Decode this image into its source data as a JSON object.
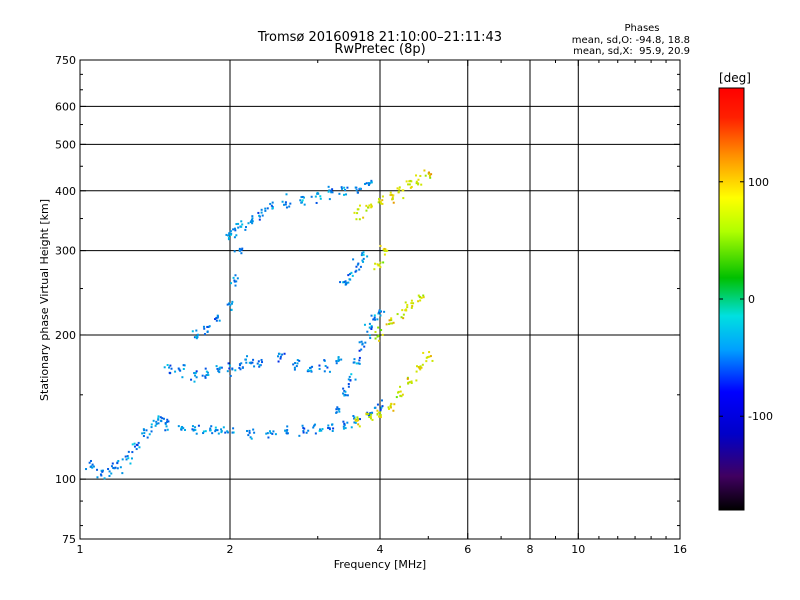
{
  "chart_data": {
    "type": "scatter",
    "title": "Tromsø 20160918 21:10:00–21:11:43",
    "subtitle": "RwPretec (8p)",
    "xlabel": "Frequency [MHz]",
    "ylabel": "Stationary phase Virtual Height [km]",
    "x_scale": "log",
    "y_scale": "log",
    "xlim": [
      1,
      16
    ],
    "ylim": [
      75,
      750
    ],
    "x_ticks": [
      1,
      2,
      4,
      6,
      8,
      10,
      16
    ],
    "x_tick_labels": [
      "1",
      "2",
      "4",
      "6",
      "8",
      "10",
      "16"
    ],
    "y_ticks": [
      75,
      100,
      200,
      300,
      400,
      500,
      600,
      750
    ],
    "y_tick_labels": [
      "75",
      "100",
      "200",
      "300",
      "400",
      "500",
      "600",
      "750"
    ],
    "grid": true,
    "colorbar": {
      "label": "[deg]",
      "range": [
        -180,
        180
      ],
      "ticks": [
        100,
        0,
        -100
      ],
      "tick_labels": [
        "100",
        "0",
        "-100"
      ]
    },
    "stats": {
      "title": "Phases",
      "line_o": "mean, sd,O: -94.8, 18.8",
      "line_x": "mean, sd,X:  95.9, 20.9"
    },
    "series": [
      {
        "mode": "O",
        "phase_mean_deg": -94.8,
        "phase_sd_deg": 18.8,
        "traces": [
          {
            "x": [
              1.05,
              1.1,
              1.15,
              1.2,
              1.25,
              1.3,
              1.35,
              1.4,
              1.45
            ],
            "y": [
              106,
              104,
              105,
              107,
              112,
              118,
              125,
              130,
              133
            ]
          },
          {
            "x": [
              1.5,
              1.6,
              1.7,
              1.8,
              1.9,
              2.0,
              2.2,
              2.4,
              2.6,
              2.8,
              3.0,
              3.2,
              3.4,
              3.6,
              3.8,
              4.0
            ],
            "y": [
              130,
              128,
              127,
              126,
              126,
              125,
              125,
              125,
              125,
              126,
              127,
              128,
              130,
              133,
              137,
              142
            ]
          },
          {
            "x": [
              1.5,
              1.6,
              1.7,
              1.8,
              1.9,
              2.0,
              2.1,
              2.2
            ],
            "y": [
              170,
              168,
              165,
              165,
              168,
              170,
              173,
              176
            ]
          },
          {
            "x": [
              1.7,
              1.8,
              1.9,
              2.0,
              2.05,
              2.1
            ],
            "y": [
              200,
              205,
              215,
              230,
              260,
              300
            ]
          },
          {
            "x": [
              2.0,
              2.05,
              2.1,
              2.2,
              2.3,
              2.4,
              2.6,
              2.8,
              3.0,
              3.2,
              3.4,
              3.6,
              3.8
            ],
            "y": [
              320,
              330,
              340,
              350,
              360,
              370,
              380,
              385,
              390,
              395,
              400,
              405,
              410
            ]
          },
          {
            "x": [
              2.3,
              2.5,
              2.7,
              2.9,
              3.1,
              3.3
            ],
            "y": [
              175,
              178,
              174,
              170,
              172,
              176
            ]
          },
          {
            "x": [
              3.3,
              3.4,
              3.5,
              3.6,
              3.7,
              3.8,
              3.9,
              4.0
            ],
            "y": [
              140,
              150,
              160,
              175,
              190,
              205,
              215,
              225
            ]
          },
          {
            "x": [
              3.4,
              3.5,
              3.6,
              3.7
            ],
            "y": [
              255,
              265,
              280,
              290
            ]
          }
        ]
      },
      {
        "mode": "X",
        "phase_mean_deg": 95.9,
        "phase_sd_deg": 20.9,
        "traces": [
          {
            "x": [
              3.6,
              3.8,
              4.0,
              4.2,
              4.4,
              4.6,
              4.8,
              5.0
            ],
            "y": [
              132,
              134,
              138,
              143,
              150,
              160,
              170,
              180
            ]
          },
          {
            "x": [
              4.0,
              4.2,
              4.4,
              4.6,
              4.8
            ],
            "y": [
              200,
              210,
              220,
              232,
              240
            ]
          },
          {
            "x": [
              3.6,
              3.8,
              4.0,
              4.2,
              4.4,
              4.6,
              4.8,
              5.0
            ],
            "y": [
              360,
              370,
              380,
              390,
              400,
              410,
              420,
              430
            ]
          },
          {
            "x": [
              4.0,
              4.1
            ],
            "y": [
              280,
              300
            ]
          }
        ]
      }
    ]
  }
}
